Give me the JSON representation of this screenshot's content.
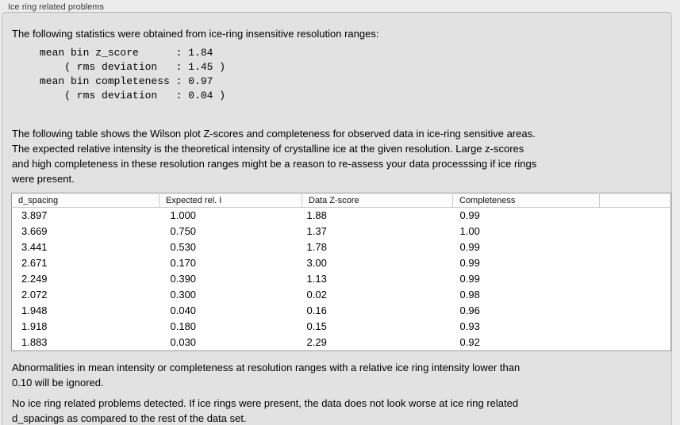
{
  "panel": {
    "title": "Ice ring related problems",
    "intro": "The following statistics were obtained from ice-ring insensitive resolution ranges:",
    "stats_block": "mean bin z_score      : 1.84\n    ( rms deviation   : 1.45 )\nmean bin completeness : 0.97\n    ( rms deviation   : 0.04 )",
    "table_description": "The following table shows the Wilson plot Z-scores and completeness for observed data in ice-ring sensitive areas.\nThe expected relative intensity is the theoretical intensity of crystalline ice at the given resolution. Large z-scores\nand high completeness in these resolution ranges might be a reason to re-assess your data processsing if ice rings\nwere present.",
    "note_ignored": "Abnormalities in mean intensity or completeness at resolution ranges with a relative ice ring intensity lower than\n0.10 will be ignored.",
    "conclusion": "No ice ring related problems detected. If ice rings were present, the data does not look worse at ice ring related\nd_spacings as compared to the rest of the data set."
  },
  "table": {
    "columns": [
      "d_spacing",
      "Expected rel. I",
      "Data Z-score",
      "Completeness",
      ""
    ],
    "rows": [
      [
        "3.897",
        "1.000",
        "1.88",
        "0.99"
      ],
      [
        "3.669",
        "0.750",
        "1.37",
        "1.00"
      ],
      [
        "3.441",
        "0.530",
        "1.78",
        "0.99"
      ],
      [
        "2.671",
        "0.170",
        "3.00",
        "0.99"
      ],
      [
        "2.249",
        "0.390",
        "1.13",
        "0.99"
      ],
      [
        "2.072",
        "0.300",
        "0.02",
        "0.98"
      ],
      [
        "1.948",
        "0.040",
        "0.16",
        "0.96"
      ],
      [
        "1.918",
        "0.180",
        "0.15",
        "0.93"
      ],
      [
        "1.883",
        "0.030",
        "2.29",
        "0.92"
      ]
    ]
  },
  "colors": {
    "window_bg": "#ececec",
    "panel_bg": "#e2e2e2",
    "panel_border": "#bfbfbf",
    "table_bg": "#ffffff",
    "table_border": "#9a9a9a",
    "header_divider": "#cccccc",
    "text": "#000000",
    "title_text": "#3d3d3d"
  }
}
